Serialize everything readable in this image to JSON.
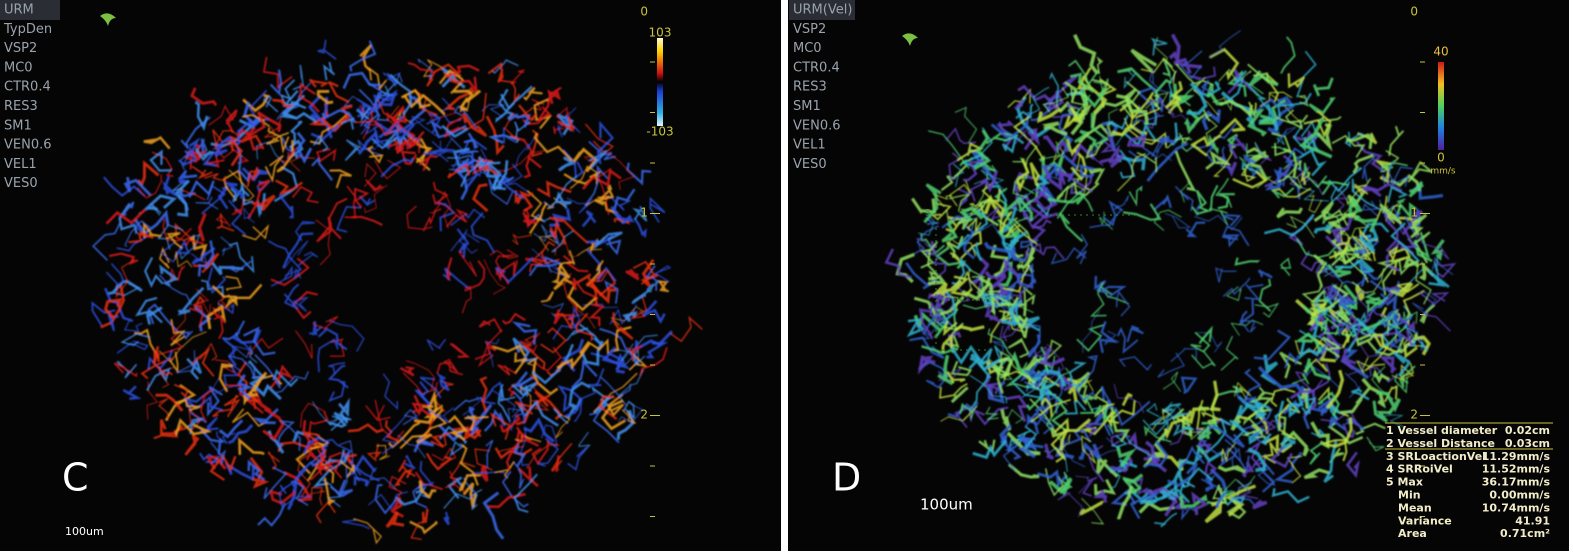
{
  "panels": [
    {
      "params": [
        "URM",
        "TypDen",
        "VSP2",
        "MC0",
        "CTR0.4",
        "RES3",
        "SM1",
        "VEN0.6",
        "VEL1",
        "VES0"
      ],
      "scale_max": "103",
      "scale_min": "-103",
      "depth_ticks": [
        "0",
        "1",
        "2"
      ],
      "label": "C",
      "scale_bar": "100um"
    },
    {
      "params": [
        "URM(Vel)",
        "VSP2",
        "MC0",
        "CTR0.4",
        "RES3",
        "SM1",
        "VEN0.6",
        "VEL1",
        "VES0"
      ],
      "scale_max": "40",
      "scale_min": "0",
      "scale_unit": "mm/s",
      "depth_ticks": [
        "0",
        "1",
        "2"
      ],
      "label": "D",
      "scale_bar": "100um",
      "marker": "5",
      "measurements": [
        [
          "1 Vessel diameter",
          "0.02cm"
        ],
        [
          "2 Vessel Distance",
          "0.03cm"
        ],
        [
          "3 SRLoactionVel",
          "11.29mm/s"
        ],
        [
          "4 SRRoiVel",
          "11.52mm/s"
        ],
        [
          "5 Max",
          "36.17mm/s"
        ],
        [
          "Min",
          "0.00mm/s"
        ],
        [
          "Mean",
          "10.74mm/s"
        ],
        [
          "Variance",
          "41.91"
        ],
        [
          "Area",
          "0.71cm²"
        ]
      ]
    }
  ]
}
